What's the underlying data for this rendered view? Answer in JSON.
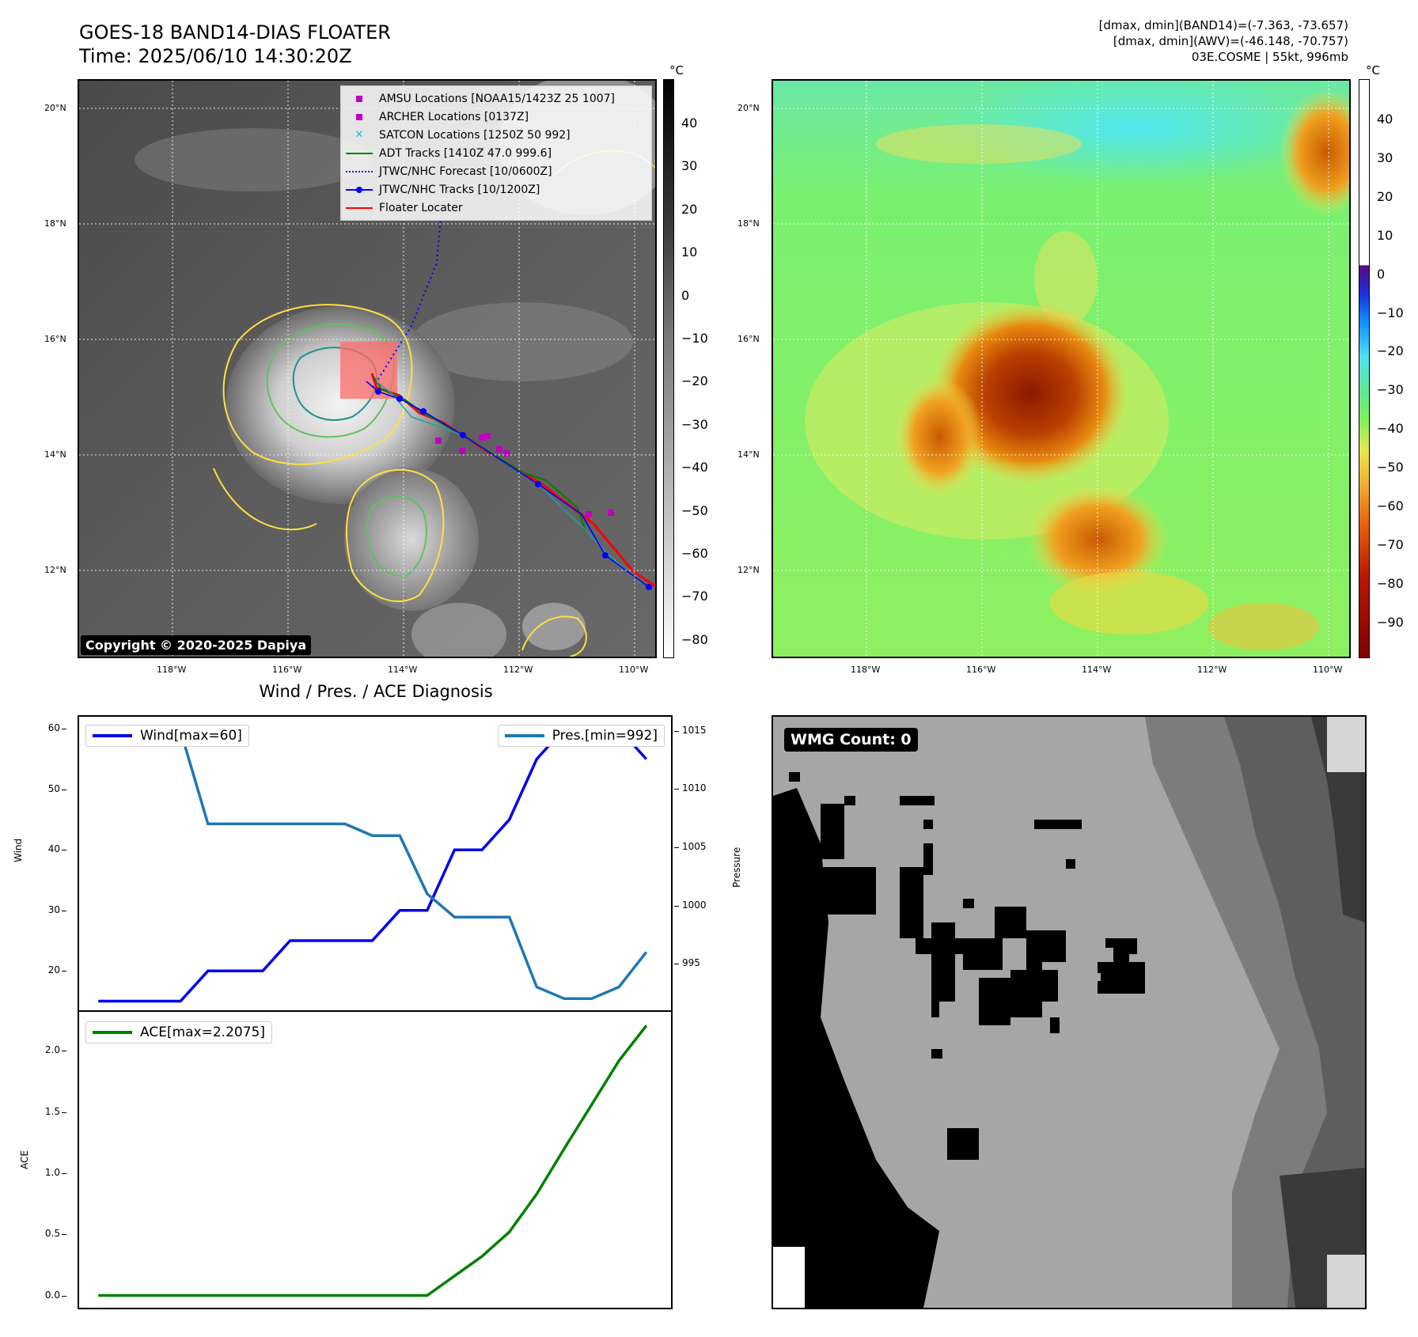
{
  "header": {
    "title_line1": "GOES-18 BAND14-DIAS FLOATER",
    "title_line2": "Time: 2025/06/10 14:30:20Z",
    "info_line1": "[dmax, dmin](BAND14)=(-7.363, -73.657)",
    "info_line2": "[dmax, dmin](AWV)=(-46.148, -70.757)",
    "info_line3": "03E.COSME | 55kt, 996mb"
  },
  "map": {
    "lat_labels": [
      "20°N",
      "18°N",
      "16°N",
      "14°N",
      "12°N"
    ],
    "lon_labels": [
      "118°W",
      "116°W",
      "114°W",
      "112°W",
      "110°W"
    ],
    "copyright": "Copyright © 2020-2025 Dapiya",
    "colorbar_unit": "°C",
    "colorbar_ticks": [
      "40",
      "30",
      "20",
      "10",
      "0",
      "−10",
      "−20",
      "−30",
      "−40",
      "−50",
      "−60",
      "−70",
      "−80"
    ],
    "legend": [
      {
        "label": "AMSU Locations [NOAA15/1423Z 25 1007]",
        "symbol": "square",
        "color": "#c000c0"
      },
      {
        "label": "ARCHER Locations [0137Z]",
        "symbol": "square",
        "color": "#c000c0"
      },
      {
        "label": "SATCON Locations [1250Z 50 992]",
        "symbol": "x",
        "color": "#20c0c0"
      },
      {
        "label": "ADT Tracks [1410Z 47.0 999.6]",
        "symbol": "line",
        "color": "#008000"
      },
      {
        "label": "JTWC/NHC Forecast [10/0600Z]",
        "symbol": "dotted",
        "color": "#0000ff"
      },
      {
        "label": "JTWC/NHC Tracks [10/1200Z]",
        "symbol": "line-dot",
        "color": "#0000ff"
      },
      {
        "label": "Floater Locater",
        "symbol": "line",
        "color": "#ff0000"
      }
    ]
  },
  "awv_map": {
    "colorbar_unit": "°C",
    "colorbar_ticks": [
      "40",
      "30",
      "20",
      "10",
      "0",
      "−10",
      "−20",
      "−30",
      "−40",
      "−50",
      "−60",
      "−70",
      "−80",
      "−90"
    ]
  },
  "diagnosis": {
    "title": "Wind / Pres. / ACE Diagnosis",
    "wind_legend": "Wind[max=60]",
    "pres_legend": "Pres.[min=992]",
    "ace_legend": "ACE[max=2.2075]",
    "wind_axis_label": "Wind",
    "pres_axis_label": "Pressure",
    "ace_axis_label": "ACE",
    "colors": {
      "wind": "#0000ee",
      "pres": "#1f77b4",
      "ace": "#008000"
    }
  },
  "wmg": {
    "badge": "WMG Count: 0"
  },
  "chart_data": [
    {
      "type": "line",
      "x": [
        0,
        1,
        2,
        3,
        4,
        5,
        6,
        7,
        8,
        9,
        10,
        11,
        12,
        13,
        14,
        15,
        16,
        17,
        18,
        19,
        20
      ],
      "series": [
        {
          "name": "Wind[max=60]",
          "axis": "left",
          "values": [
            15,
            15,
            15,
            15,
            20,
            20,
            20,
            25,
            25,
            25,
            25,
            30,
            30,
            40,
            40,
            45,
            55,
            60,
            60,
            60,
            55
          ]
        },
        {
          "name": "Pres.[min=992]",
          "axis": "right",
          "values": [
            1015,
            1015,
            1015,
            1015,
            1007,
            1007,
            1007,
            1007,
            1007,
            1007,
            1006,
            1006,
            1001,
            999,
            999,
            999,
            993,
            992,
            992,
            993,
            996
          ]
        }
      ],
      "ylabel": "Wind",
      "ylabel_right": "Pressure",
      "yticks": [
        20,
        30,
        40,
        50,
        60
      ],
      "ylim": [
        13.5,
        62
      ],
      "yticks_right": [
        995,
        1000,
        1005,
        1010,
        1015
      ],
      "ylim_right": [
        991,
        1016.2
      ]
    },
    {
      "type": "line",
      "x": [
        0,
        1,
        2,
        3,
        4,
        5,
        6,
        7,
        8,
        9,
        10,
        11,
        12,
        13,
        14,
        15,
        16,
        17,
        18,
        19,
        20
      ],
      "series": [
        {
          "name": "ACE[max=2.2075]",
          "values": [
            0,
            0,
            0,
            0,
            0,
            0,
            0,
            0,
            0,
            0,
            0,
            0,
            0,
            0.16,
            0.32,
            0.52,
            0.83,
            1.2,
            1.56,
            1.92,
            2.2075
          ]
        }
      ],
      "ylabel": "ACE",
      "yticks": [
        0.0,
        0.5,
        1.0,
        1.5,
        2.0
      ],
      "ylim": [
        -0.1,
        2.32
      ]
    }
  ]
}
